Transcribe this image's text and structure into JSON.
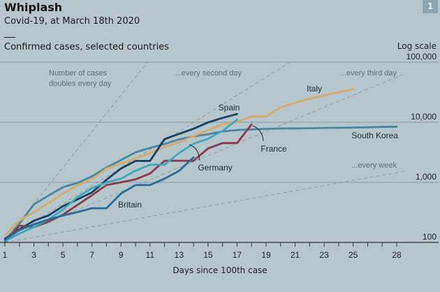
{
  "header": {
    "title": "Whiplash",
    "subtitle": "Covid-19, at March 18th 2020",
    "caption": "Confirmed cases, selected countries",
    "badge": "1"
  },
  "chart_data": {
    "type": "line",
    "title": "Whiplash",
    "subtitle": "Covid-19, at March 18th 2020",
    "ylabel": "Confirmed cases, selected countries",
    "yscale_label": "Log scale",
    "xlabel": "Days since 100th case",
    "xlim": [
      1,
      28
    ],
    "ylim": [
      100,
      100000
    ],
    "yscale": "log",
    "x_ticks": [
      1,
      2,
      3,
      4,
      5,
      6,
      7,
      8,
      9,
      10,
      11,
      12,
      13,
      14,
      15,
      16,
      17,
      18,
      19,
      20,
      21,
      22,
      23,
      24,
      25,
      26,
      27,
      28
    ],
    "x_tick_labels": [
      "1",
      "3",
      "5",
      "7",
      "9",
      "11",
      "13",
      "15",
      "17",
      "19",
      "21",
      "23",
      "25",
      "28"
    ],
    "x_tick_label_values": [
      1,
      3,
      5,
      7,
      9,
      11,
      13,
      15,
      17,
      19,
      21,
      23,
      25,
      28
    ],
    "y_ticks": [
      100,
      1000,
      10000,
      100000
    ],
    "y_tick_labels": [
      "100",
      "1,000",
      "10,000",
      "100,000"
    ],
    "grid": true,
    "reference_lines": [
      {
        "label": "Number of cases doubles every day",
        "label_lines": [
          "Number of cases",
          "doubles every day"
        ],
        "doubling_days": 1,
        "start": 110
      },
      {
        "label": "...every second day",
        "doubling_days": 2,
        "start": 110
      },
      {
        "label": "...every third day",
        "doubling_days": 3,
        "start": 110
      },
      {
        "label": "...every week",
        "doubling_days": 7,
        "start": 100
      }
    ],
    "series": [
      {
        "name": "South Korea",
        "color": "#4a86a0",
        "x": [
          1,
          2,
          3,
          4,
          5,
          6,
          7,
          8,
          9,
          10,
          11,
          12,
          13,
          14,
          15,
          16,
          17,
          18,
          19,
          20,
          21,
          22,
          23,
          24,
          25,
          26,
          27,
          28
        ],
        "values": [
          105,
          205,
          430,
          600,
          830,
          975,
          1260,
          1770,
          2340,
          3150,
          3740,
          4340,
          5190,
          5800,
          6300,
          7050,
          7400,
          7600,
          7750,
          7850,
          7900,
          7950,
          8050,
          8100,
          8150,
          8250,
          8350,
          8450
        ]
      },
      {
        "name": "Italy",
        "color": "#d6aa6a",
        "x": [
          1,
          2,
          3,
          4,
          5,
          6,
          7,
          8,
          9,
          10,
          11,
          12,
          13,
          14,
          15,
          16,
          17,
          18,
          19,
          20,
          21,
          22,
          23,
          24,
          25
        ],
        "values": [
          130,
          230,
          320,
          450,
          650,
          890,
          1130,
          1700,
          2040,
          2500,
          3090,
          3860,
          4640,
          5880,
          7380,
          9170,
          10150,
          12460,
          12460,
          17660,
          21160,
          24750,
          27980,
          31500,
          35700
        ]
      },
      {
        "name": "Spain",
        "color": "#173f5f",
        "x": [
          1,
          2,
          3,
          4,
          5,
          6,
          7,
          8,
          9,
          10,
          11,
          12,
          13,
          14,
          15,
          16,
          17
        ],
        "values": [
          115,
          165,
          230,
          280,
          400,
          520,
          680,
          1100,
          1700,
          2270,
          2270,
          5230,
          6390,
          7800,
          9940,
          11800,
          13700
        ]
      },
      {
        "name": "France",
        "color": "#8b3a4e",
        "x": [
          1,
          2,
          3,
          4,
          5,
          6,
          7,
          8,
          9,
          10,
          11,
          12,
          13,
          14,
          15,
          16,
          17,
          18
        ],
        "values": [
          100,
          190,
          180,
          220,
          290,
          420,
          610,
          900,
          1000,
          1120,
          1400,
          2280,
          2290,
          2280,
          3660,
          4500,
          4500,
          9200
        ]
      },
      {
        "name": "Germany",
        "color": "#3aa9bd",
        "x": [
          1,
          2,
          3,
          4,
          5,
          6,
          7,
          8,
          9,
          10,
          11,
          12,
          13,
          14,
          15,
          16,
          17
        ],
        "values": [
          105,
          140,
          180,
          240,
          350,
          570,
          800,
          1000,
          1150,
          1560,
          1960,
          1970,
          3060,
          4400,
          5300,
          7200,
          11000
        ]
      },
      {
        "name": "Britain",
        "color": "#2a6a98",
        "x": [
          1,
          2,
          3,
          4,
          5,
          6,
          7,
          8,
          9,
          10,
          11,
          12,
          13,
          14
        ],
        "values": [
          110,
          160,
          200,
          240,
          280,
          320,
          370,
          370,
          650,
          900,
          900,
          1150,
          1550,
          2600
        ]
      }
    ],
    "annotations": [
      {
        "text": "Spain",
        "series": "Spain"
      },
      {
        "text": "Italy",
        "series": "Italy"
      },
      {
        "text": "South Korea",
        "series": "South Korea"
      },
      {
        "text": "France",
        "series": "France"
      },
      {
        "text": "Germany",
        "series": "Germany"
      },
      {
        "text": "Britain",
        "series": "Britain"
      }
    ]
  }
}
